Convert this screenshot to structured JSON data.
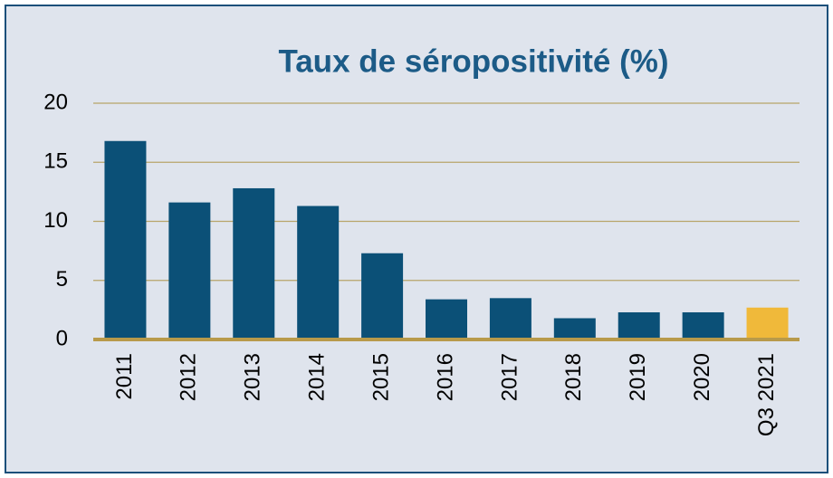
{
  "chart_data": {
    "type": "bar",
    "title": "Taux de séropositivité (%)",
    "categories": [
      "2011",
      "2012",
      "2013",
      "2014",
      "2015",
      "2016",
      "2017",
      "2018",
      "2019",
      "2020",
      "Q3 2021"
    ],
    "values": [
      16.8,
      11.6,
      12.8,
      11.3,
      7.3,
      3.4,
      3.5,
      1.8,
      2.3,
      2.3,
      2.7
    ],
    "colors": [
      "#0b5077",
      "#0b5077",
      "#0b5077",
      "#0b5077",
      "#0b5077",
      "#0b5077",
      "#0b5077",
      "#0b5077",
      "#0b5077",
      "#0b5077",
      "#f0b93a"
    ],
    "ylim": [
      0,
      20
    ],
    "yticks": [
      0,
      5,
      10,
      15,
      20
    ],
    "grid": true
  }
}
